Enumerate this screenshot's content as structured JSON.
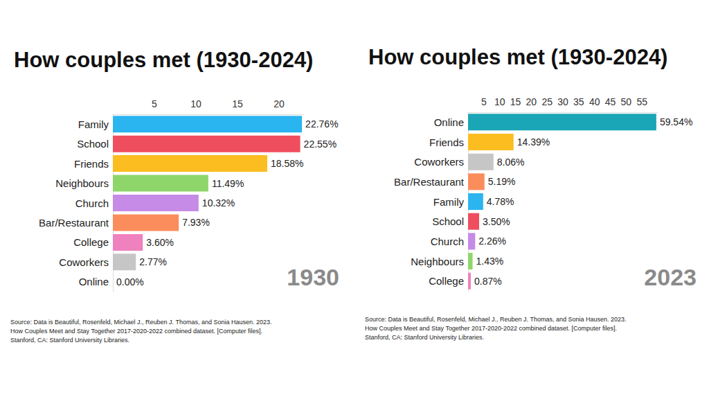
{
  "chart_data": [
    {
      "type": "bar",
      "title": "How couples met (1930-2024)",
      "orientation": "horizontal",
      "data_labels": true,
      "grid": false,
      "categories": [
        "Family",
        "School",
        "Friends",
        "Neighbours",
        "Church",
        "Bar/Restaurant",
        "College",
        "Coworkers",
        "Online"
      ],
      "values": [
        22.76,
        22.55,
        18.58,
        11.49,
        10.32,
        7.93,
        3.6,
        2.77,
        0.0
      ],
      "value_labels": [
        "22.76%",
        "22.55%",
        "18.58%",
        "11.49%",
        "10.32%",
        "7.93%",
        "3.60%",
        "2.77%",
        "0.00%"
      ],
      "colors": [
        "#2bb5f0",
        "#ef4e5e",
        "#fbbd1f",
        "#8fd66a",
        "#c58be6",
        "#fb8d5c",
        "#ee81be",
        "#c6c6c6",
        "#1aa6b6"
      ],
      "xlim": [
        0,
        23
      ],
      "xticks": [
        5,
        10,
        15,
        20
      ],
      "annotation": "1930",
      "source": [
        "Source: Data is Beautiful, Rosenfeld, Michael J., Reuben J. Thomas, and Sonia Hausen. 2023.",
        "How Couples Meet and Stay Together 2017-2020-2022 combined dataset. [Computer files].",
        "Stanford, CA: Stanford University Libraries."
      ]
    },
    {
      "type": "bar",
      "title": "How couples met (1930-2024)",
      "orientation": "horizontal",
      "data_labels": true,
      "grid": false,
      "categories": [
        "Online",
        "Friends",
        "Coworkers",
        "Bar/Restaurant",
        "Family",
        "School",
        "Church",
        "Neighbours",
        "College"
      ],
      "values": [
        59.54,
        14.39,
        8.06,
        5.19,
        4.78,
        3.5,
        2.26,
        1.43,
        0.87
      ],
      "value_labels": [
        "59.54%",
        "14.39%",
        "8.06%",
        "5.19%",
        "4.78%",
        "3.50%",
        "2.26%",
        "1.43%",
        "0.87%"
      ],
      "colors": [
        "#1aa6b6",
        "#fbbd1f",
        "#c6c6c6",
        "#fb8d5c",
        "#2bb5f0",
        "#ef4e5e",
        "#c58be6",
        "#8fd66a",
        "#ee81be"
      ],
      "xlim": [
        0,
        60
      ],
      "xticks": [
        5,
        10,
        15,
        20,
        25,
        30,
        35,
        40,
        45,
        50,
        55
      ],
      "annotation": "2023",
      "source": [
        "Source: Data is Beautiful, Rosenfeld, Michael J., Reuben J. Thomas, and Sonia Hausen. 2023.",
        "How Couples Meet and Stay Together 2017-2020-2022 combined dataset. [Computer files].",
        "Stanford, CA: Stanford University Libraries."
      ]
    }
  ]
}
